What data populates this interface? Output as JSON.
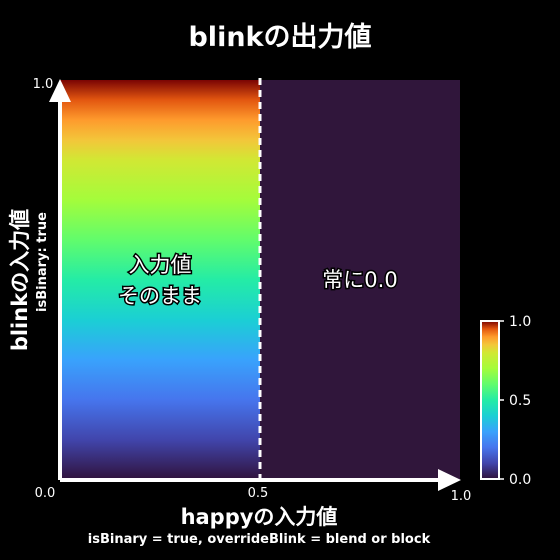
{
  "chart_data": {
    "type": "heatmap",
    "title": "blinkの出力値",
    "xlabel": "happyの入力値",
    "xlabel_note": "isBinary = true, overrideBlink = blend or block",
    "ylabel": "blinkの入力値",
    "ylabel_note": "isBinary: true",
    "xlim": [
      0.0,
      1.0
    ],
    "ylim": [
      0.0,
      1.0
    ],
    "x_ticks": [
      "0.0",
      "0.5",
      "1.0"
    ],
    "y_ticks": [
      "1.0"
    ],
    "threshold_x": 0.5,
    "regions": [
      {
        "x_range": [
          0.0,
          0.5
        ],
        "output": "input",
        "label_line1": "入力値",
        "label_line2": "そのまま"
      },
      {
        "x_range": [
          0.5,
          1.0
        ],
        "output": 0.0,
        "label_line1": "常に0.0"
      }
    ],
    "colorbar": {
      "min": 0.0,
      "max": 1.0,
      "ticks": [
        "0.0",
        "0.5",
        "1.0"
      ],
      "colormap": "turbo"
    },
    "grid": false
  }
}
